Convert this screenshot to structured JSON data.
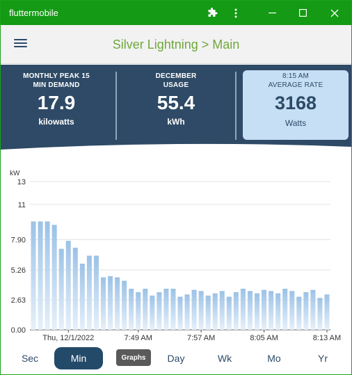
{
  "window": {
    "title": "fluttermobile",
    "controls": {
      "extension_icon": "puzzle-icon",
      "more_icon": "more-vert-icon",
      "minimize_icon": "minimize-icon",
      "maximize_icon": "maximize-icon",
      "close_icon": "close-icon"
    }
  },
  "appbar": {
    "menu_icon": "hamburger-menu-icon",
    "title": "Silver Lightning > Main"
  },
  "stats": [
    {
      "caption_line1": "MONTHLY PEAK 15",
      "caption_line2": "MIN DEMAND",
      "value": "17.9",
      "unit": "kilowatts"
    },
    {
      "caption_line1": "DECEMBER",
      "caption_line2": "USAGE",
      "value": "55.4",
      "unit": "kWh"
    },
    {
      "caption_line1": "8:15 AM",
      "caption_line2": "AVERAGE RATE",
      "value": "3168",
      "unit": "Watts"
    }
  ],
  "colors": {
    "titlebar": "#149a14",
    "stats_band": "#2e4a66",
    "highlight_card": "#c6dff5",
    "bar": "#9fc3e6",
    "accent_green": "#6fa83a",
    "nav_active": "#244a6a"
  },
  "chart_data": {
    "type": "bar",
    "ylabel": "kW",
    "ylim": [
      0,
      13
    ],
    "yticks": [
      "13",
      "11",
      "7.90",
      "5.26",
      "2.63",
      "0.00"
    ],
    "ytick_values": [
      13,
      11,
      7.9,
      5.26,
      2.63,
      0
    ],
    "xtick_labels": [
      "Thu, 12/1/2022",
      "7:49 AM",
      "7:57 AM",
      "8:05 AM",
      "8:13 AM"
    ],
    "xtick_bar_index": [
      5,
      15,
      24,
      33,
      42
    ],
    "values": [
      9.5,
      9.5,
      9.5,
      9.2,
      7.1,
      7.8,
      7.2,
      5.8,
      6.5,
      6.5,
      4.6,
      4.7,
      4.6,
      4.3,
      3.6,
      3.3,
      3.6,
      3.0,
      3.3,
      3.6,
      3.6,
      2.9,
      3.1,
      3.5,
      3.4,
      3.0,
      3.2,
      3.4,
      2.9,
      3.3,
      3.6,
      3.4,
      3.2,
      3.5,
      3.4,
      3.2,
      3.6,
      3.4,
      2.9,
      3.3,
      3.5,
      2.8,
      3.1
    ]
  },
  "bottom_nav": {
    "items": [
      "Sec",
      "Min",
      "Day",
      "Wk",
      "Mo",
      "Yr"
    ],
    "active": "Min",
    "graphs_label": "Graphs"
  }
}
